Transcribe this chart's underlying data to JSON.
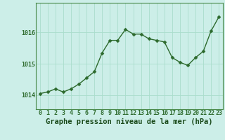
{
  "x": [
    0,
    1,
    2,
    3,
    4,
    5,
    6,
    7,
    8,
    9,
    10,
    11,
    12,
    13,
    14,
    15,
    16,
    17,
    18,
    19,
    20,
    21,
    22,
    23
  ],
  "y": [
    1014.05,
    1014.1,
    1014.2,
    1014.1,
    1014.2,
    1014.35,
    1014.55,
    1014.75,
    1015.35,
    1015.75,
    1015.75,
    1016.1,
    1015.95,
    1015.95,
    1015.8,
    1015.75,
    1015.7,
    1015.2,
    1015.05,
    1014.95,
    1015.2,
    1015.4,
    1016.05,
    1016.5
  ],
  "line_color": "#2d6a2d",
  "marker": "D",
  "marker_size": 2.5,
  "line_width": 1.0,
  "bg_color": "#cceee8",
  "grid_color": "#aaddcc",
  "xlabel": "Graphe pression niveau de la mer (hPa)",
  "xlabel_fontsize": 7.5,
  "xlabel_color": "#1a4a1a",
  "tick_color": "#2d6a2d",
  "tick_fontsize": 6,
  "ytick_labels": [
    "1014",
    "1015",
    "1016"
  ],
  "ytick_values": [
    1014,
    1015,
    1016
  ],
  "ylim": [
    1013.55,
    1016.95
  ],
  "xlim": [
    -0.5,
    23.5
  ],
  "xtick_labels": [
    "0",
    "1",
    "2",
    "3",
    "4",
    "5",
    "6",
    "7",
    "8",
    "9",
    "10",
    "11",
    "12",
    "13",
    "14",
    "15",
    "16",
    "17",
    "18",
    "19",
    "20",
    "21",
    "22",
    "23"
  ],
  "spine_color": "#4a8a4a"
}
